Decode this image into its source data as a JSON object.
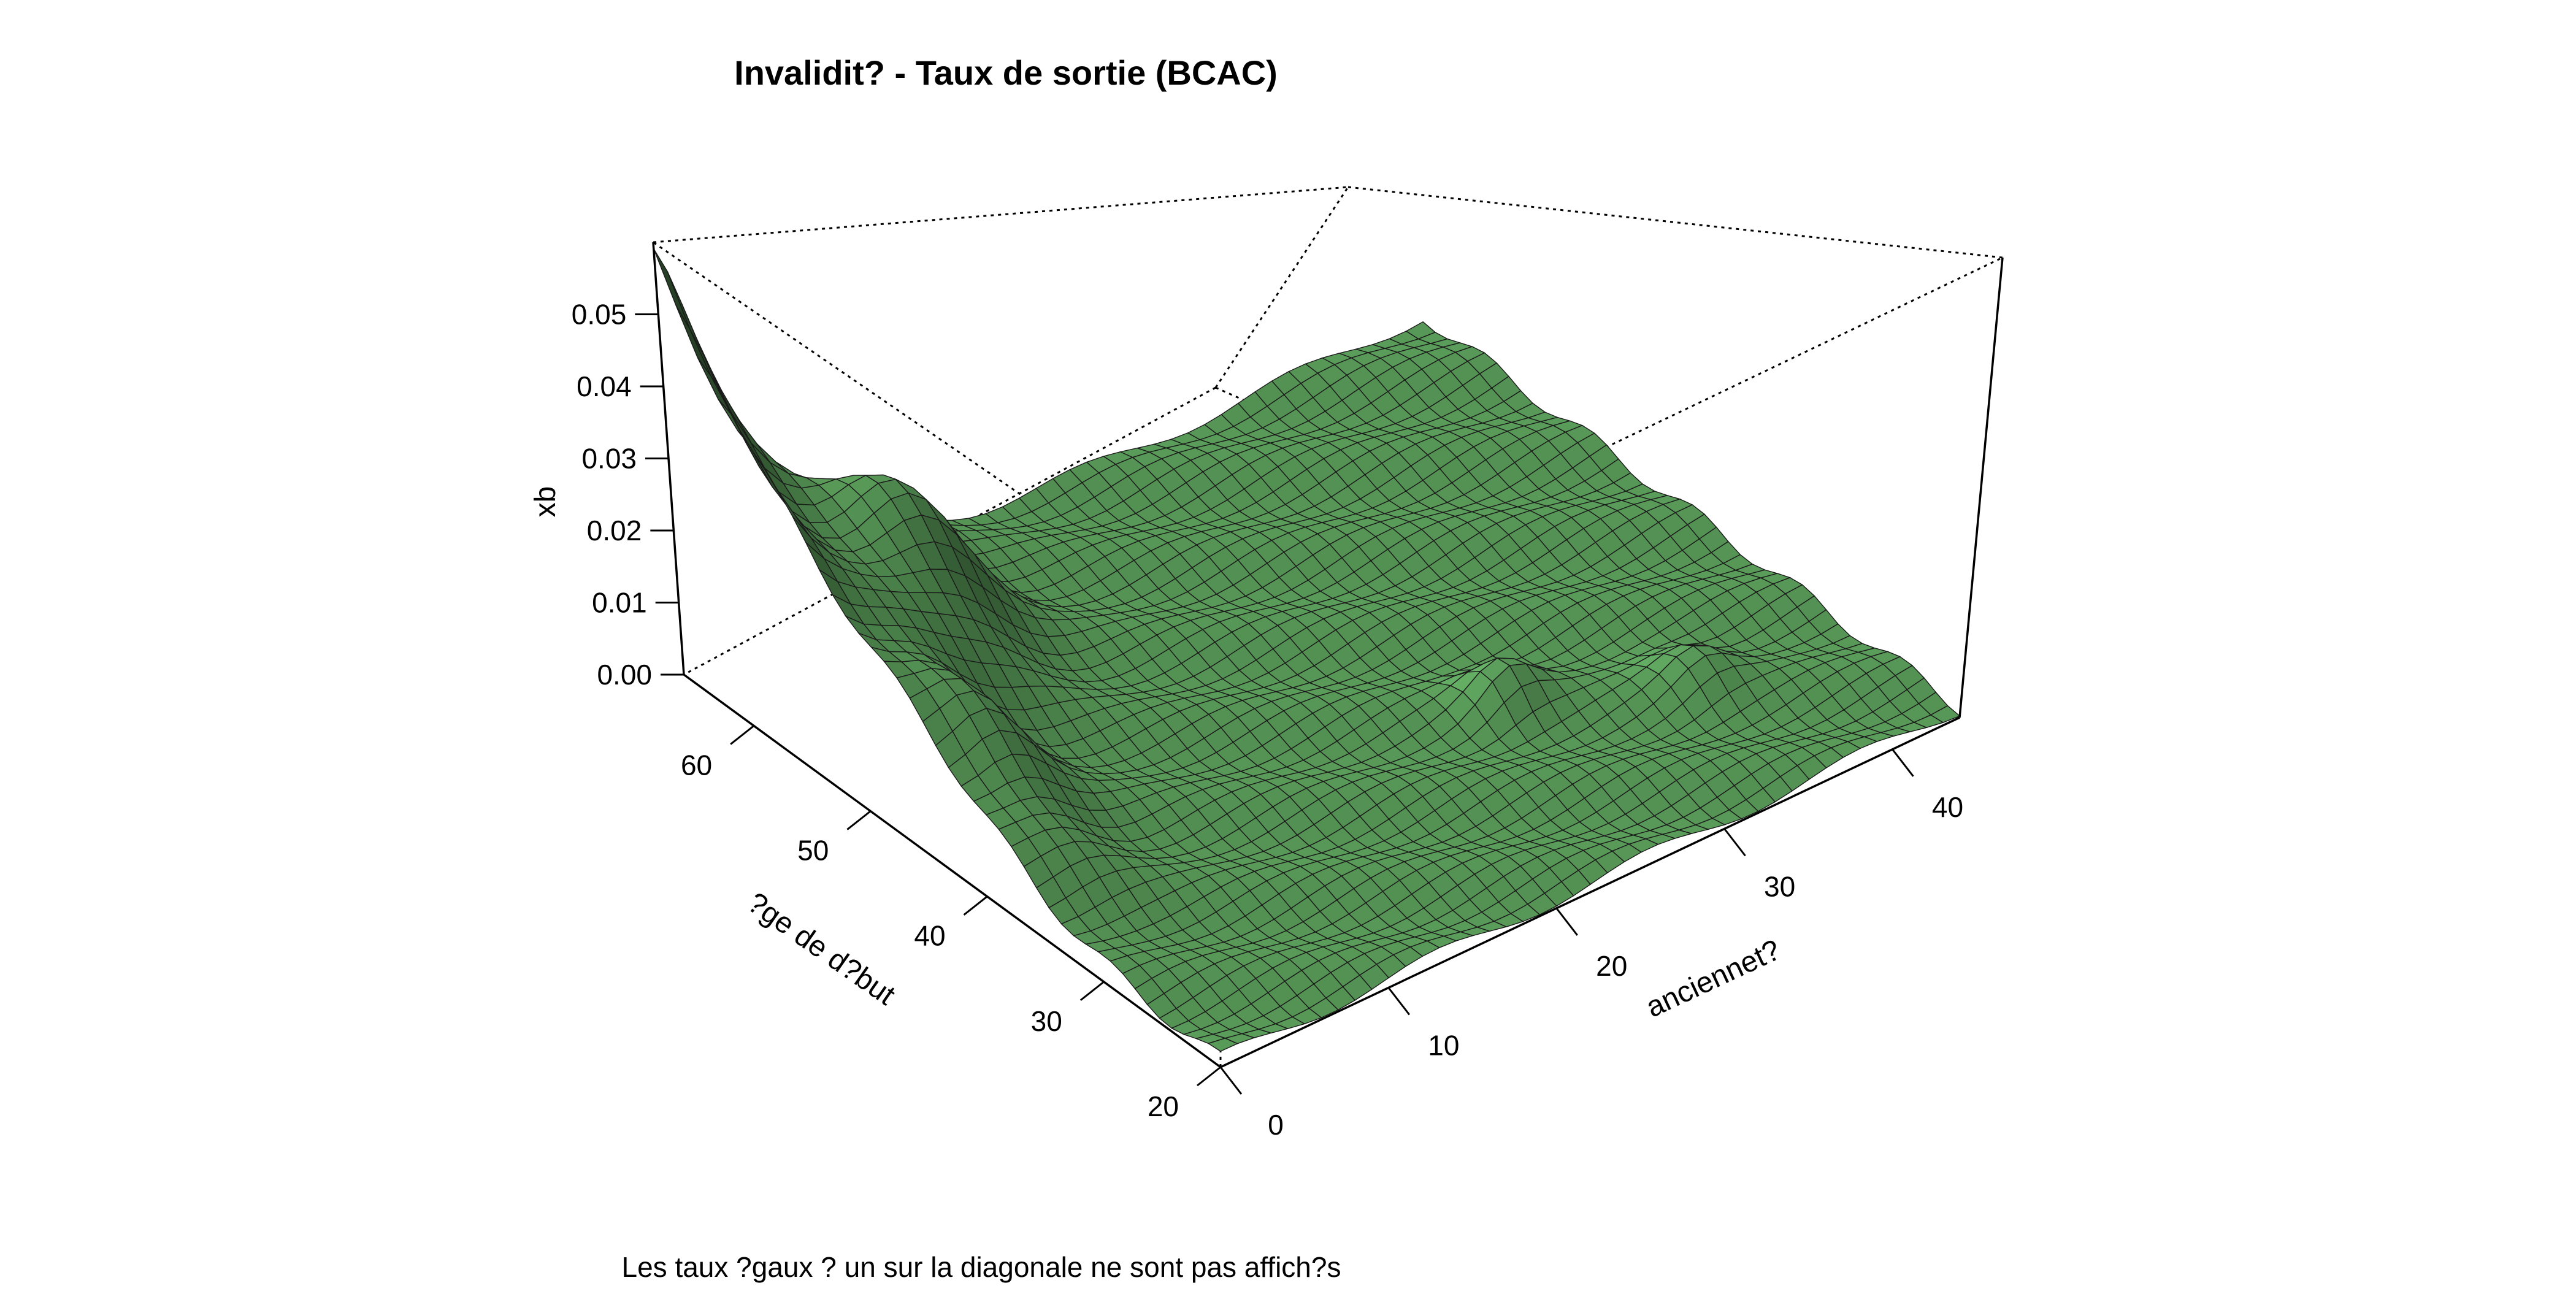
{
  "chart_data": {
    "type": "surface",
    "title": "Invalidit? - Taux de sortie (BCAC)",
    "caption": "Les taux ?gaux ? un sur la diagonale ne sont pas affich?s",
    "z_label": "xb",
    "age_label": "?ge de d?but",
    "seniority_label": "anciennet?",
    "z_ticks": [
      "0.00",
      "0.01",
      "0.02",
      "0.03",
      "0.04",
      "0.05"
    ],
    "z_range": [
      0,
      0.06
    ],
    "age_ticks": [
      "20",
      "30",
      "40",
      "50",
      "60"
    ],
    "age_range": [
      20,
      66
    ],
    "seniority_ticks": [
      "0",
      "10",
      "20",
      "30",
      "40"
    ],
    "seniority_range": [
      0,
      44
    ],
    "surface_color": "#6ab86a",
    "box": true
  }
}
